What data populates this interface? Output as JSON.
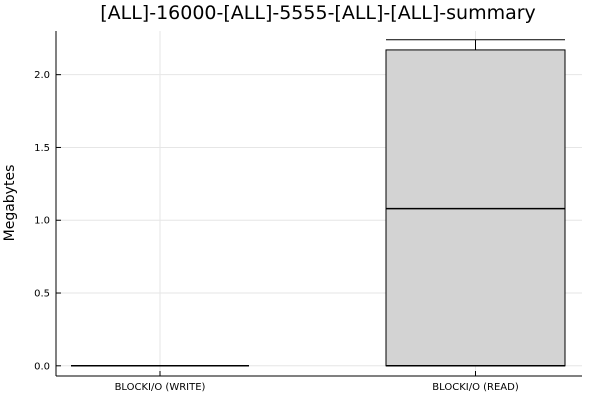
{
  "chart_data": {
    "type": "box",
    "title": "[ALL]-16000-[ALL]-5555-[ALL]-[ALL]-summary",
    "xlabel": "",
    "ylabel": "Megabytes",
    "categories": [
      "BLOCKI/O (WRITE)",
      "BLOCKI/O (READ)"
    ],
    "ylim": [
      -0.07,
      2.3
    ],
    "yticks": [
      0.0,
      0.5,
      1.0,
      1.5,
      2.0
    ],
    "ytick_labels": [
      "0.0",
      "0.5",
      "1.0",
      "1.5",
      "2.0"
    ],
    "grid": true,
    "legend": "none",
    "box_fill": "#d3d3d3",
    "boxes": [
      {
        "category": "BLOCKI/O (WRITE)",
        "min": 0.0,
        "q1": 0.0,
        "median": 0.0,
        "q3": 0.0,
        "max": 0.0
      },
      {
        "category": "BLOCKI/O (READ)",
        "min": 0.0,
        "q1": 0.0,
        "median": 1.08,
        "q3": 2.17,
        "max": 2.24
      }
    ]
  }
}
